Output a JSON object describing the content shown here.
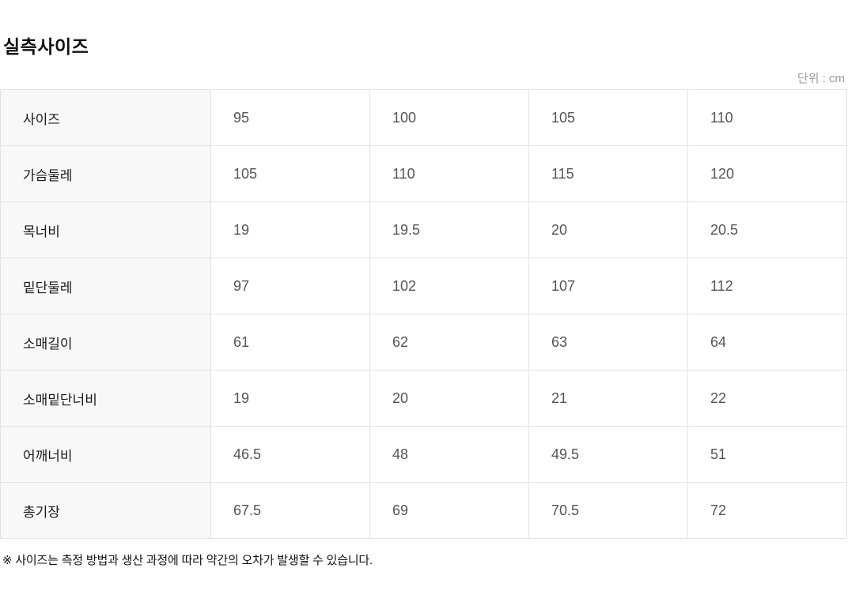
{
  "page": {
    "title": "실측사이즈",
    "unit_label": "단위 : cm",
    "footnote": "※ 사이즈는 측정 방법과 생산 과정에 따라 약간의 오차가 발생할 수 있습니다."
  },
  "size_table": {
    "rows": [
      {
        "label": "사이즈",
        "values": [
          "95",
          "100",
          "105",
          "110"
        ]
      },
      {
        "label": "가슴둘레",
        "values": [
          "105",
          "110",
          "115",
          "120"
        ]
      },
      {
        "label": "목너비",
        "values": [
          "19",
          "19.5",
          "20",
          "20.5"
        ]
      },
      {
        "label": "밑단둘레",
        "values": [
          "97",
          "102",
          "107",
          "112"
        ]
      },
      {
        "label": "소매길이",
        "values": [
          "61",
          "62",
          "63",
          "64"
        ]
      },
      {
        "label": "소매밑단너비",
        "values": [
          "19",
          "20",
          "21",
          "22"
        ]
      },
      {
        "label": "어깨너비",
        "values": [
          "46.5",
          "48",
          "49.5",
          "51"
        ]
      },
      {
        "label": "총기장",
        "values": [
          "67.5",
          "69",
          "70.5",
          "72"
        ]
      }
    ]
  },
  "chart_data": {
    "type": "table",
    "title": "실측사이즈",
    "unit": "cm",
    "row_headers": [
      "사이즈",
      "가슴둘레",
      "목너비",
      "밑단둘레",
      "소매길이",
      "소매밑단너비",
      "어깨너비",
      "총기장"
    ],
    "columns": [
      "95",
      "100",
      "105",
      "110"
    ],
    "values": [
      [
        95,
        100,
        105,
        110
      ],
      [
        105,
        110,
        115,
        120
      ],
      [
        19,
        19.5,
        20,
        20.5
      ],
      [
        97,
        102,
        107,
        112
      ],
      [
        61,
        62,
        63,
        64
      ],
      [
        19,
        20,
        21,
        22
      ],
      [
        46.5,
        48,
        49.5,
        51
      ],
      [
        67.5,
        69,
        70.5,
        72
      ]
    ]
  },
  "colors": {
    "label_cell_bg": "#f8f8f8",
    "border": "#e2e2e2",
    "value_text": "#555555",
    "label_text": "#1a1a1a",
    "unit_text": "#9b9b9b",
    "title_text": "#111111"
  }
}
